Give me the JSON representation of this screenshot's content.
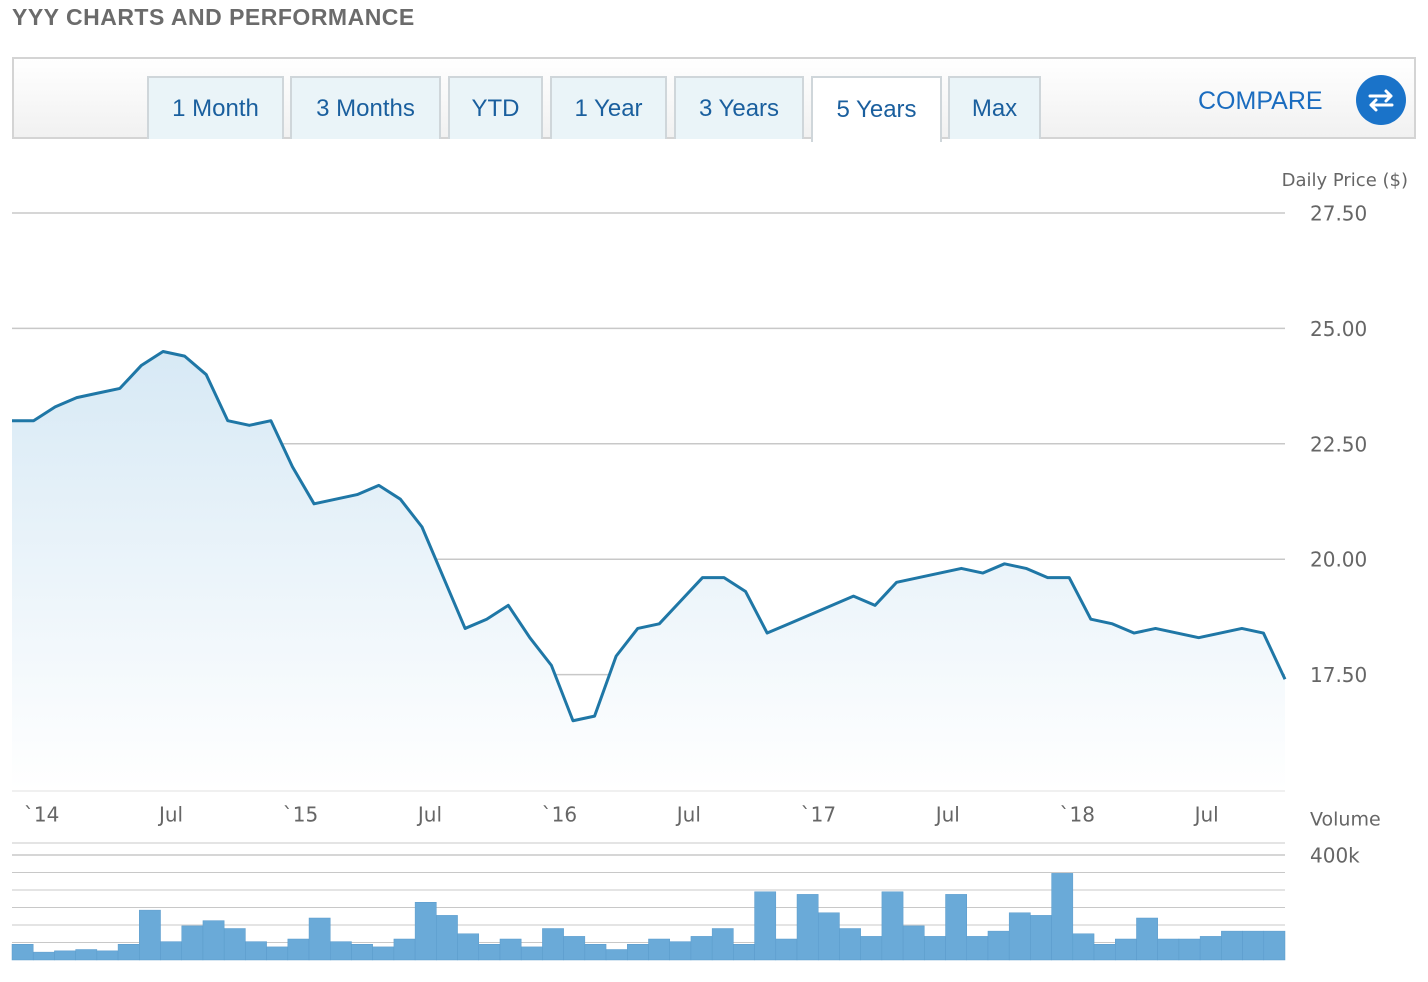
{
  "page": {
    "title": "YYY CHARTS AND PERFORMANCE",
    "tabs": [
      "1 Month",
      "3 Months",
      "YTD",
      "1 Year",
      "3 Years",
      "5 Years",
      "Max"
    ],
    "compare": "COMPARE"
  },
  "chart_data": [
    {
      "type": "line",
      "y_label": "Daily Price ($)",
      "color": "#1f77a6",
      "x": [
        "2013-12",
        "2014-01",
        "2014-02",
        "2014-03",
        "2014-04",
        "2014-05",
        "2014-06",
        "2014-07",
        "2014-08",
        "2014-09",
        "2014-10",
        "2014-11",
        "2014-12",
        "2015-01",
        "2015-02",
        "2015-03",
        "2015-04",
        "2015-05",
        "2015-06",
        "2015-07",
        "2015-08",
        "2015-09",
        "2015-10",
        "2015-11",
        "2015-12",
        "2016-01",
        "2016-02",
        "2016-03",
        "2016-04",
        "2016-05",
        "2016-06",
        "2016-07",
        "2016-08",
        "2016-09",
        "2016-10",
        "2016-11",
        "2016-12",
        "2017-01",
        "2017-02",
        "2017-03",
        "2017-04",
        "2017-05",
        "2017-06",
        "2017-07",
        "2017-08",
        "2017-09",
        "2017-10",
        "2017-11",
        "2017-12",
        "2018-01",
        "2018-02",
        "2018-03",
        "2018-04",
        "2018-05",
        "2018-06",
        "2018-07",
        "2018-08",
        "2018-09",
        "2018-10",
        "2018-11"
      ],
      "values": [
        23.0,
        23.0,
        23.3,
        23.5,
        23.6,
        23.7,
        24.2,
        24.5,
        24.4,
        24.0,
        23.0,
        22.9,
        23.0,
        22.0,
        21.2,
        21.3,
        21.4,
        21.6,
        21.3,
        20.7,
        19.6,
        18.5,
        18.7,
        19.0,
        18.3,
        17.7,
        16.5,
        16.6,
        17.9,
        18.5,
        18.6,
        19.1,
        19.6,
        19.6,
        19.3,
        18.4,
        18.6,
        18.8,
        19.0,
        19.2,
        19.0,
        19.5,
        19.6,
        19.7,
        19.8,
        19.7,
        19.9,
        19.8,
        19.6,
        19.6,
        18.7,
        18.6,
        18.4,
        18.5,
        18.4,
        18.3,
        18.4,
        18.5,
        18.4,
        17.4
      ],
      "xlim": [
        "2013-12",
        "2018-11"
      ],
      "xticks": [
        {
          "value": "2014-01",
          "label": "`14"
        },
        {
          "value": "2014-07",
          "label": "Jul"
        },
        {
          "value": "2015-01",
          "label": "`15"
        },
        {
          "value": "2015-07",
          "label": "Jul"
        },
        {
          "value": "2016-01",
          "label": "`16"
        },
        {
          "value": "2016-07",
          "label": "Jul"
        },
        {
          "value": "2017-01",
          "label": "`17"
        },
        {
          "value": "2017-07",
          "label": "Jul"
        },
        {
          "value": "2018-01",
          "label": "`18"
        },
        {
          "value": "2018-07",
          "label": "Jul"
        }
      ],
      "ylim": [
        15,
        27.5
      ],
      "yticks": [
        {
          "value": 17.5,
          "label": "17.50"
        },
        {
          "value": 20,
          "label": "20.00"
        },
        {
          "value": 22.5,
          "label": "22.50"
        },
        {
          "value": 25,
          "label": "25.00"
        },
        {
          "value": 27.5,
          "label": "27.50"
        }
      ],
      "grid": true
    },
    {
      "type": "bar",
      "y_label": "Volume",
      "color": "#6aaad8",
      "x": [
        "2013-12",
        "2014-01",
        "2014-02",
        "2014-03",
        "2014-04",
        "2014-05",
        "2014-06",
        "2014-07",
        "2014-08",
        "2014-09",
        "2014-10",
        "2014-11",
        "2014-12",
        "2015-01",
        "2015-02",
        "2015-03",
        "2015-04",
        "2015-05",
        "2015-06",
        "2015-07",
        "2015-08",
        "2015-09",
        "2015-10",
        "2015-11",
        "2015-12",
        "2016-01",
        "2016-02",
        "2016-03",
        "2016-04",
        "2016-05",
        "2016-06",
        "2016-07",
        "2016-08",
        "2016-09",
        "2016-10",
        "2016-11",
        "2016-12",
        "2017-01",
        "2017-02",
        "2017-03",
        "2017-04",
        "2017-05",
        "2017-06",
        "2017-07",
        "2017-08",
        "2017-09",
        "2017-10",
        "2017-11",
        "2017-12",
        "2018-01",
        "2018-02",
        "2018-03",
        "2018-04",
        "2018-05",
        "2018-06",
        "2018-07",
        "2018-08",
        "2018-09",
        "2018-10",
        "2018-11"
      ],
      "values": [
        60000,
        30000,
        35000,
        40000,
        35000,
        60000,
        190000,
        70000,
        130000,
        150000,
        120000,
        70000,
        50000,
        80000,
        160000,
        70000,
        60000,
        50000,
        80000,
        220000,
        170000,
        100000,
        60000,
        80000,
        50000,
        120000,
        90000,
        60000,
        40000,
        60000,
        80000,
        70000,
        90000,
        120000,
        60000,
        260000,
        80000,
        250000,
        180000,
        120000,
        90000,
        260000,
        130000,
        90000,
        250000,
        90000,
        110000,
        180000,
        170000,
        330000,
        100000,
        60000,
        80000,
        160000,
        80000,
        80000,
        90000,
        110000,
        110000,
        110000
      ],
      "xlim": [
        "2013-12",
        "2018-11"
      ],
      "ylim": [
        0,
        400000
      ],
      "yticks": [
        {
          "value": 400000,
          "label": "400k"
        }
      ],
      "grid": true
    }
  ]
}
